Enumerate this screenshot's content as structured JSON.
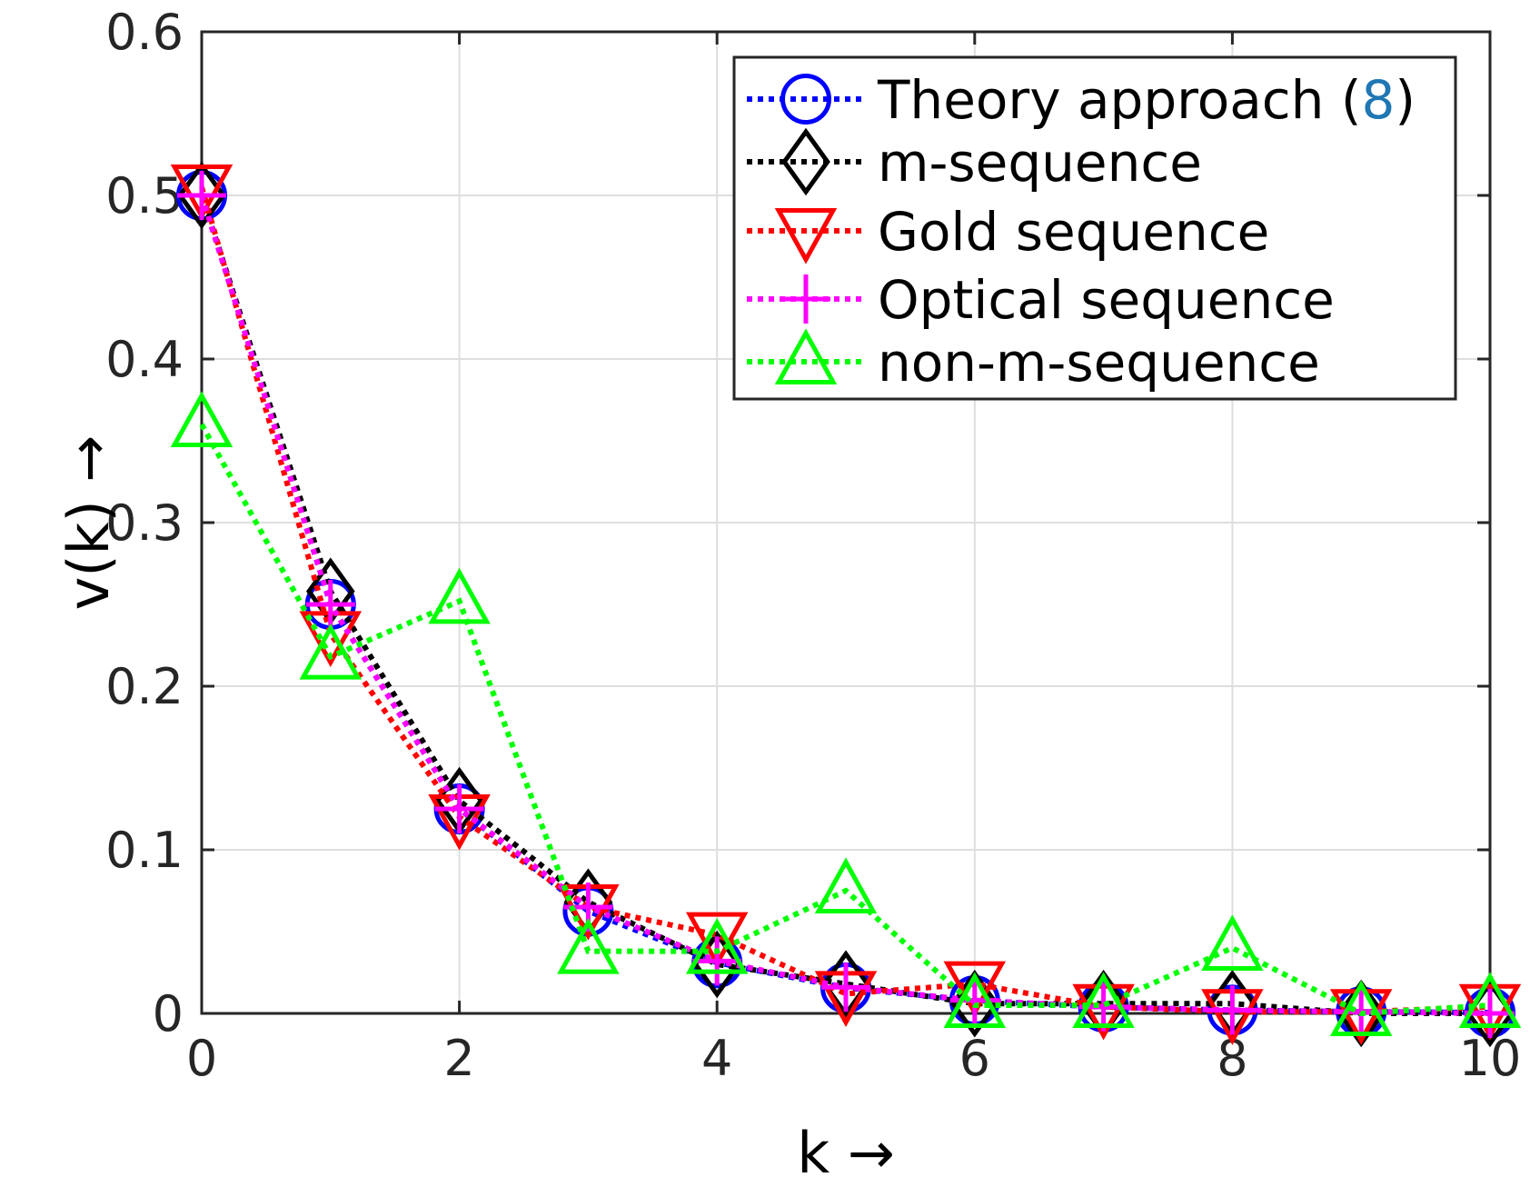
{
  "chart_data": {
    "type": "line",
    "title": "",
    "xlabel": "k →",
    "ylabel": "v(k) →",
    "xlim": [
      0,
      10
    ],
    "ylim": [
      0,
      0.6
    ],
    "xticks": [
      0,
      2,
      4,
      6,
      8,
      10
    ],
    "xtick_labels": [
      "0",
      "2",
      "4",
      "6",
      "8",
      "10"
    ],
    "yticks": [
      0,
      0.1,
      0.2,
      0.3,
      0.4,
      0.5,
      0.6
    ],
    "ytick_labels": [
      "0",
      "0.1",
      "0.2",
      "0.3",
      "0.4",
      "0.5",
      "0.6"
    ],
    "grid": true,
    "legend_position": "top-right",
    "x": [
      0,
      1,
      2,
      3,
      4,
      5,
      6,
      7,
      8,
      9,
      10
    ],
    "series": [
      {
        "name": "Theory approach (8)",
        "name_prefix": "Theory approach (",
        "name_ref": "8",
        "name_suffix": ")",
        "color": "#0000ff",
        "ref_color": "#1f77b4",
        "marker": "circle",
        "values": [
          0.5,
          0.25,
          0.125,
          0.0625,
          0.031,
          0.0156,
          0.0078,
          0.0039,
          0.002,
          0.001,
          0.0005
        ]
      },
      {
        "name": "m-sequence",
        "color": "#000000",
        "marker": "diamond",
        "values": [
          0.5,
          0.258,
          0.13,
          0.068,
          0.03,
          0.018,
          0.006,
          0.006,
          0.006,
          0.0,
          0.0
        ]
      },
      {
        "name": "Gold sequence",
        "color": "#ff0000",
        "marker": "triangle-down",
        "values": [
          0.505,
          0.232,
          0.12,
          0.065,
          0.048,
          0.012,
          0.018,
          0.004,
          0.001,
          0.001,
          0.004
        ]
      },
      {
        "name": "Optical sequence",
        "color": "#ff00ff",
        "marker": "plus",
        "values": [
          0.5,
          0.25,
          0.125,
          0.065,
          0.032,
          0.016,
          0.008,
          0.004,
          0.002,
          0.001,
          0.0
        ]
      },
      {
        "name": "non-m-sequence",
        "color": "#00ff00",
        "marker": "triangle-up",
        "values": [
          0.36,
          0.218,
          0.252,
          0.038,
          0.038,
          0.075,
          0.005,
          0.005,
          0.04,
          0.0,
          0.005
        ]
      }
    ]
  }
}
